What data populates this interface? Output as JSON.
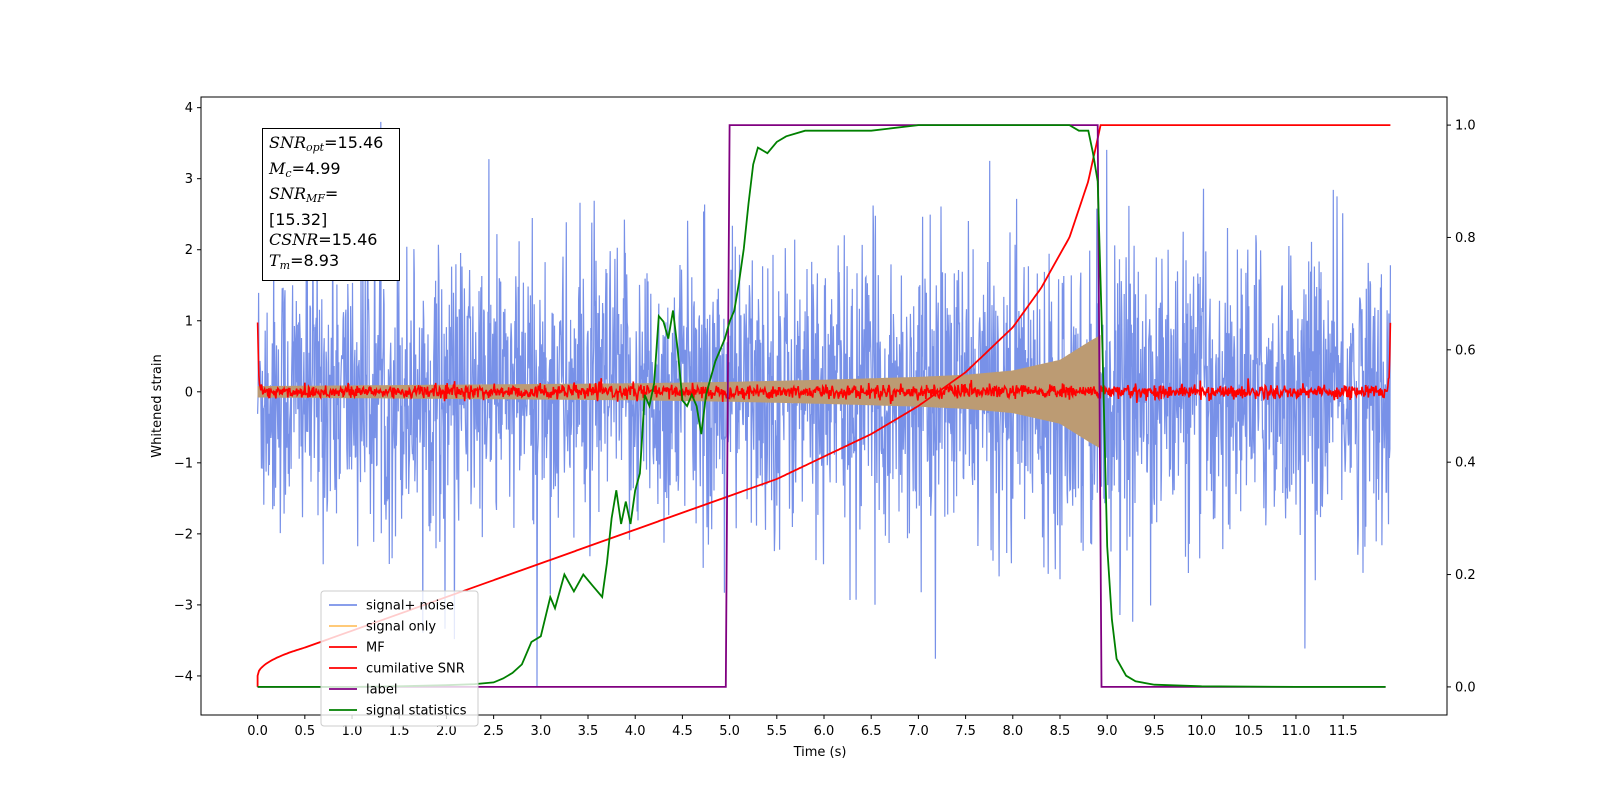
{
  "chart_data": {
    "type": "line",
    "xlabel": "Time (s)",
    "ylabel": "Whitened strain",
    "xlim": [
      -0.6,
      12.6
    ],
    "ylim": [
      -4.55,
      4.15
    ],
    "y2lim": [
      -0.05,
      1.05
    ],
    "x_ticks": [
      "0.0",
      "0.5",
      "1.0",
      "1.5",
      "2.0",
      "2.5",
      "3.0",
      "3.5",
      "4.0",
      "4.5",
      "5.0",
      "5.5",
      "6.0",
      "6.5",
      "7.0",
      "7.5",
      "8.0",
      "8.5",
      "9.0",
      "9.5",
      "10.0",
      "10.5",
      "11.0",
      "11.5"
    ],
    "y_ticks": [
      "4",
      "3",
      "2",
      "1",
      "0",
      "−1",
      "−2",
      "−3",
      "−4"
    ],
    "y2_ticks": [
      "1.0",
      "0.8",
      "0.6",
      "0.4",
      "0.2",
      "0.0"
    ],
    "annotations": {
      "snr_opt": {
        "sym": "SNR",
        "sub": "opt",
        "value": "=15.46"
      },
      "mc": {
        "sym": "M",
        "sub": "c",
        "value": "=4.99"
      },
      "snr_mf": {
        "sym": "SNR",
        "sub": "MF",
        "value": "=[15.32]"
      },
      "csnr": {
        "sym": "CSNR",
        "value": "=15.46"
      },
      "tm": {
        "sym": "T",
        "sub": "m",
        "value": "=8.93"
      }
    },
    "legend": {
      "placement": "lower-left",
      "entries": [
        {
          "label": "signal+ noise",
          "color": "#7891e8"
        },
        {
          "label": "signal only",
          "color": "#ffc266"
        },
        {
          "label": "MF",
          "color": "#ff0000"
        },
        {
          "label": "cumilative SNR",
          "color": "#ff0000"
        },
        {
          "label": "label",
          "color": "#800080"
        },
        {
          "label": "signal statistics",
          "color": "#008000"
        }
      ]
    },
    "series": [
      {
        "name": "signal+ noise",
        "axis": "left",
        "kind": "noise",
        "x_range": [
          0,
          12
        ],
        "std": 1.0,
        "color": "#7891e8"
      },
      {
        "name": "signal only",
        "axis": "left",
        "kind": "chirp_envelope",
        "x_range": [
          0,
          8.93
        ],
        "envelope": [
          [
            0,
            0.08
          ],
          [
            1,
            0.09
          ],
          [
            2,
            0.1
          ],
          [
            3,
            0.11
          ],
          [
            4,
            0.12
          ],
          [
            5,
            0.14
          ],
          [
            6,
            0.17
          ],
          [
            7,
            0.21
          ],
          [
            7.5,
            0.24
          ],
          [
            8,
            0.3
          ],
          [
            8.5,
            0.45
          ],
          [
            8.8,
            0.7
          ],
          [
            8.93,
            0.8
          ]
        ],
        "color": "#bc9b73"
      },
      {
        "name": "MF",
        "axis": "left",
        "kind": "noise_small",
        "x_range": [
          0,
          12
        ],
        "std": 0.05,
        "color": "#ff0000"
      },
      {
        "name": "cumilative SNR",
        "axis": "right",
        "x": [
          0,
          0.01,
          0.1,
          0.5,
          1,
          1.5,
          2,
          2.5,
          3,
          3.5,
          4,
          4.5,
          5,
          5.5,
          6,
          6.5,
          7,
          7.5,
          8,
          8.3,
          8.6,
          8.8,
          8.93,
          9,
          12
        ],
        "y": [
          0,
          0.02,
          0.03,
          0.07,
          0.1,
          0.13,
          0.16,
          0.19,
          0.22,
          0.25,
          0.28,
          0.31,
          0.34,
          0.37,
          0.41,
          0.45,
          0.5,
          0.56,
          0.64,
          0.71,
          0.8,
          0.9,
          1.0,
          1.0,
          1.0
        ],
        "color": "#ff0000"
      },
      {
        "name": "label",
        "axis": "right",
        "x": [
          0,
          4.96,
          5.0,
          8.9,
          8.94,
          11.95
        ],
        "y": [
          0,
          0,
          1,
          1,
          0,
          0
        ],
        "color": "#800080"
      },
      {
        "name": "signal statistics",
        "axis": "right",
        "x": [
          0,
          0.5,
          1,
          1.5,
          2,
          2.3,
          2.5,
          2.6,
          2.7,
          2.8,
          2.9,
          3.0,
          3.1,
          3.15,
          3.25,
          3.35,
          3.45,
          3.55,
          3.65,
          3.7,
          3.75,
          3.8,
          3.85,
          3.9,
          3.95,
          4.0,
          4.05,
          4.1,
          4.15,
          4.2,
          4.25,
          4.3,
          4.35,
          4.4,
          4.45,
          4.5,
          4.55,
          4.6,
          4.65,
          4.7,
          4.75,
          4.8,
          4.85,
          4.9,
          4.95,
          5.0,
          5.05,
          5.1,
          5.15,
          5.2,
          5.25,
          5.3,
          5.4,
          5.5,
          5.6,
          5.8,
          6.0,
          6.5,
          7,
          7.5,
          8,
          8.4,
          8.6,
          8.7,
          8.8,
          8.85,
          8.9,
          8.95,
          9.0,
          9.05,
          9.1,
          9.2,
          9.3,
          9.5,
          10,
          11,
          11.95
        ],
        "y": [
          0,
          0,
          0,
          0.001,
          0.003,
          0.005,
          0.008,
          0.015,
          0.025,
          0.04,
          0.08,
          0.09,
          0.16,
          0.14,
          0.2,
          0.17,
          0.2,
          0.18,
          0.16,
          0.22,
          0.3,
          0.35,
          0.29,
          0.33,
          0.29,
          0.35,
          0.38,
          0.52,
          0.5,
          0.54,
          0.66,
          0.65,
          0.62,
          0.67,
          0.6,
          0.51,
          0.5,
          0.52,
          0.5,
          0.45,
          0.52,
          0.55,
          0.58,
          0.6,
          0.62,
          0.65,
          0.67,
          0.72,
          0.78,
          0.86,
          0.93,
          0.96,
          0.95,
          0.97,
          0.98,
          0.99,
          0.99,
          0.99,
          1.0,
          1.0,
          1.0,
          1.0,
          1.0,
          0.99,
          0.99,
          0.95,
          0.9,
          0.6,
          0.25,
          0.12,
          0.05,
          0.02,
          0.01,
          0.004,
          0.001,
          0,
          0
        ],
        "color": "#008000"
      }
    ]
  }
}
